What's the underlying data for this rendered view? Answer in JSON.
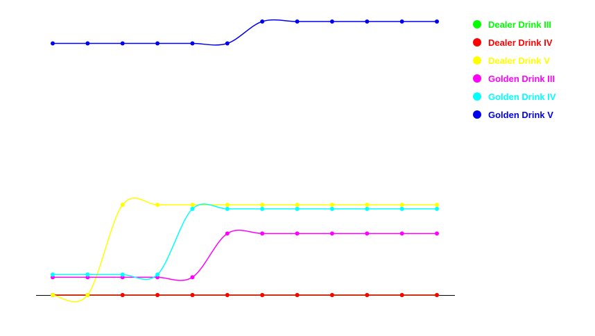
{
  "chart_data": {
    "type": "line",
    "smooth": true,
    "markers": true,
    "x": [
      1,
      2,
      3,
      4,
      5,
      6,
      7,
      8,
      9,
      10,
      11,
      12
    ],
    "ylim": [
      0,
      100
    ],
    "grid": false,
    "legend_position": "top-right",
    "series": [
      {
        "name": "Dealer Drink III",
        "color": "#00ff00",
        "values": [
          0,
          0,
          0,
          0,
          0,
          0,
          0,
          0,
          0,
          0,
          0,
          0
        ]
      },
      {
        "name": "Dealer Drink IV",
        "color": "#ff0000",
        "values": [
          0,
          0,
          0,
          0,
          0,
          0,
          0,
          0,
          0,
          0,
          0,
          0
        ]
      },
      {
        "name": "Dealer Drink V",
        "color": "#ffff00",
        "values": [
          0,
          0,
          33,
          33,
          33,
          33,
          33,
          33,
          33,
          33,
          33,
          33
        ]
      },
      {
        "name": "Golden Drink III",
        "color": "#ff00ff",
        "values": [
          6.5,
          6.5,
          6.5,
          6.5,
          6.5,
          22.5,
          22.5,
          22.5,
          22.5,
          22.5,
          22.5,
          22.5
        ]
      },
      {
        "name": "Golden Drink IV",
        "color": "#00ffff",
        "values": [
          7.5,
          7.5,
          7.5,
          7.5,
          31.5,
          31.5,
          31.5,
          31.5,
          31.5,
          31.5,
          31.5,
          31.5
        ]
      },
      {
        "name": "Golden Drink V",
        "color": "#0000ee",
        "values": [
          92,
          92,
          92,
          92,
          92,
          92,
          100,
          100,
          100,
          100,
          100,
          100
        ]
      }
    ]
  }
}
